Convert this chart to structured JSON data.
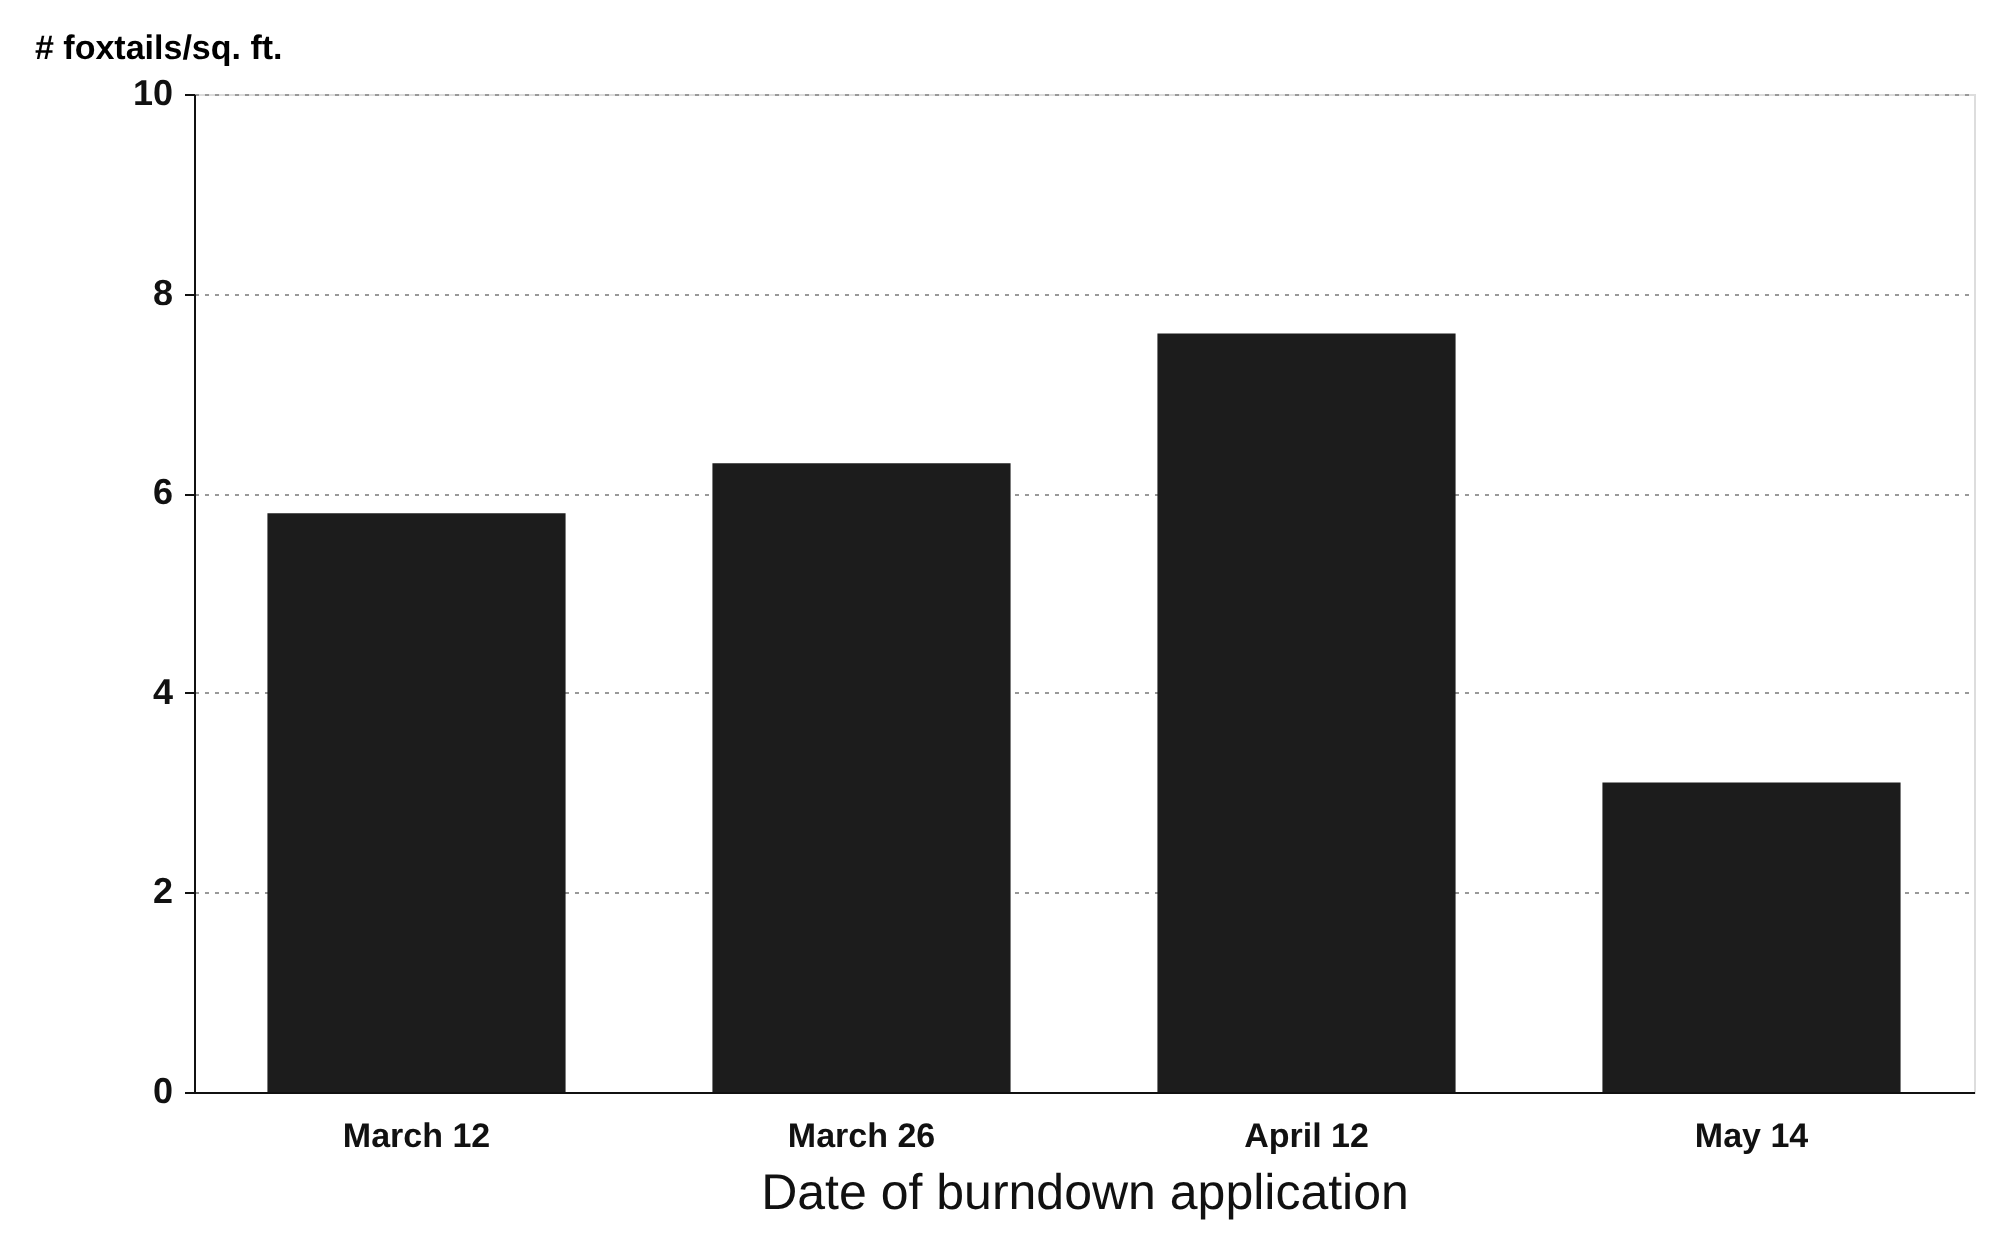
{
  "chart_data": {
    "type": "bar",
    "xlabel": "Date of burndown application",
    "ylabel": "# foxtails/sq. ft.",
    "categories": [
      "March 12",
      "March 26",
      "April 12",
      "May 14"
    ],
    "values": [
      5.8,
      6.3,
      7.6,
      3.1
    ],
    "color": "#1c1c1c",
    "ylim": [
      0,
      10
    ],
    "yticks": [
      0,
      2,
      4,
      6,
      8,
      10
    ],
    "grid": "y"
  }
}
